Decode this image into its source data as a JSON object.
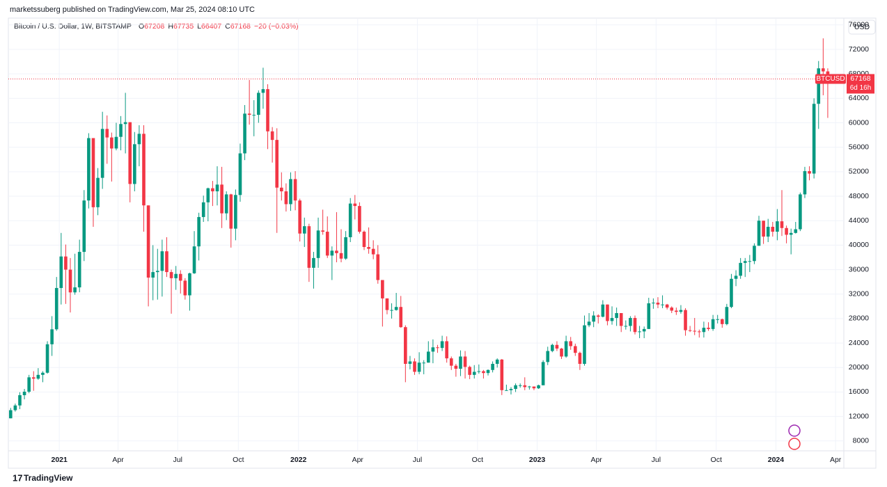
{
  "header": "marketssuberg published on TradingView.com, Mar 25, 2024 08:10 UTC",
  "footer": "TradingView",
  "currency_button": "USD",
  "chart_data": {
    "type": "candlestick",
    "legend": {
      "symbol": "Bitcoin / U.S. Dollar, 1W, BITSTAMP",
      "labels": [
        "O",
        "H",
        "L",
        "C"
      ],
      "change": "−20 (−0.03%)"
    },
    "up_color": "#089981",
    "down_color": "#f23645",
    "xlim": [
      -0.5,
      181.5
    ],
    "xticks": [
      {
        "value": 10.6,
        "label": "2021"
      },
      {
        "value": 23.4,
        "label": "Apr"
      },
      {
        "value": 36.4,
        "label": "Jul"
      },
      {
        "value": 49.6,
        "label": "Oct"
      },
      {
        "value": 62.7,
        "label": "2022"
      },
      {
        "value": 75.6,
        "label": "Apr"
      },
      {
        "value": 88.6,
        "label": "Jul"
      },
      {
        "value": 101.7,
        "label": "Oct"
      },
      {
        "value": 114.7,
        "label": "2023"
      },
      {
        "value": 127.6,
        "label": "Apr"
      },
      {
        "value": 140.6,
        "label": "Jul"
      },
      {
        "value": 153.7,
        "label": "Oct"
      },
      {
        "value": 166.7,
        "label": "2024"
      },
      {
        "value": 179.7,
        "label": "Apr"
      }
    ],
    "ylim": [
      6500,
      77000
    ],
    "yticks": [
      8000,
      12000,
      16000,
      20000,
      24000,
      28000,
      32000,
      36000,
      40000,
      44000,
      48000,
      52000,
      56000,
      60000,
      64000,
      68000,
      72000,
      76000
    ],
    "grid": true,
    "price_label": {
      "symbol": "BTCUSD",
      "value": 67168,
      "countdown": "6d 16h"
    },
    "candles": [
      [
        11700,
        13400,
        11700,
        13030
      ],
      [
        13030,
        14100,
        12800,
        13800
      ],
      [
        13800,
        15970,
        13200,
        15480
      ],
      [
        15480,
        16500,
        14800,
        16050
      ],
      [
        16050,
        18800,
        15800,
        18400
      ],
      [
        18400,
        19400,
        16200,
        18180
      ],
      [
        18180,
        19900,
        18000,
        18800
      ],
      [
        18800,
        19400,
        17600,
        19150
      ],
      [
        19150,
        24300,
        19000,
        23800
      ],
      [
        23800,
        28400,
        21900,
        26250
      ],
      [
        26250,
        34800,
        26000,
        33000
      ],
      [
        33000,
        42000,
        30300,
        38150
      ],
      [
        38150,
        40100,
        30400,
        36000
      ],
      [
        36000,
        37900,
        29000,
        32280
      ],
      [
        32280,
        38600,
        31900,
        33100
      ],
      [
        33100,
        40900,
        32300,
        38900
      ],
      [
        38900,
        49000,
        37400,
        47300
      ],
      [
        47300,
        58300,
        46000,
        57500
      ],
      [
        57500,
        57500,
        43000,
        46200
      ],
      [
        46200,
        52600,
        44900,
        51000
      ],
      [
        51000,
        61800,
        49200,
        59000
      ],
      [
        59000,
        61200,
        53300,
        57600
      ],
      [
        57600,
        58400,
        50400,
        55800
      ],
      [
        55800,
        60000,
        55500,
        57700
      ],
      [
        57700,
        61100,
        55500,
        59800
      ],
      [
        59800,
        64900,
        55000,
        60100
      ],
      [
        60100,
        60100,
        47000,
        50000
      ],
      [
        50000,
        58500,
        48800,
        56500
      ],
      [
        56500,
        59600,
        52900,
        58200
      ],
      [
        58200,
        59600,
        42200,
        46500
      ],
      [
        46500,
        46500,
        30000,
        34700
      ],
      [
        34700,
        40000,
        31000,
        35600
      ],
      [
        35600,
        39400,
        31100,
        35800
      ],
      [
        35800,
        40900,
        31600,
        39000
      ],
      [
        39000,
        41300,
        34800,
        35600
      ],
      [
        35600,
        36000,
        28800,
        34600
      ],
      [
        34600,
        36600,
        32700,
        35300
      ],
      [
        35300,
        35900,
        32100,
        34200
      ],
      [
        34200,
        34600,
        31100,
        31800
      ],
      [
        31800,
        35500,
        29300,
        35400
      ],
      [
        35400,
        42300,
        35300,
        39800
      ],
      [
        39800,
        45300,
        37500,
        44600
      ],
      [
        44600,
        48100,
        43800,
        47000
      ],
      [
        47000,
        49400,
        43900,
        49300
      ],
      [
        49300,
        50500,
        46400,
        48800
      ],
      [
        48800,
        52900,
        46500,
        49900
      ],
      [
        49900,
        52800,
        42800,
        45200
      ],
      [
        45200,
        48800,
        44100,
        48300
      ],
      [
        48300,
        48400,
        39600,
        42700
      ],
      [
        42700,
        49100,
        40800,
        48200
      ],
      [
        48200,
        56600,
        47100,
        55000
      ],
      [
        55000,
        62900,
        53900,
        61500
      ],
      [
        61500,
        67000,
        59700,
        61300
      ],
      [
        61300,
        63700,
        57800,
        61300
      ],
      [
        61300,
        65300,
        60000,
        64900
      ],
      [
        64900,
        69000,
        62300,
        65500
      ],
      [
        65500,
        66300,
        55700,
        58600
      ],
      [
        58600,
        59300,
        53500,
        57200
      ],
      [
        57200,
        59100,
        42000,
        49400
      ],
      [
        49400,
        51900,
        47300,
        48800
      ],
      [
        48800,
        50100,
        45500,
        46700
      ],
      [
        46700,
        51900,
        45600,
        50800
      ],
      [
        50800,
        52100,
        45700,
        47300
      ],
      [
        47300,
        47600,
        40600,
        41900
      ],
      [
        41900,
        44500,
        39700,
        43100
      ],
      [
        43100,
        43500,
        34000,
        36300
      ],
      [
        36300,
        38900,
        32900,
        37900
      ],
      [
        37900,
        44500,
        36300,
        42400
      ],
      [
        42400,
        45800,
        41700,
        42200
      ],
      [
        42200,
        44700,
        37900,
        38300
      ],
      [
        38300,
        39800,
        34300,
        39100
      ],
      [
        39100,
        45400,
        37200,
        38700
      ],
      [
        38700,
        42600,
        37200,
        37800
      ],
      [
        37800,
        42300,
        37600,
        41300
      ],
      [
        41300,
        47700,
        40500,
        46800
      ],
      [
        46800,
        48200,
        44200,
        46400
      ],
      [
        46400,
        47000,
        41900,
        42200
      ],
      [
        42200,
        42400,
        39200,
        39700
      ],
      [
        39700,
        42900,
        38600,
        39400
      ],
      [
        39400,
        40800,
        37700,
        38500
      ],
      [
        38500,
        40000,
        33700,
        34300
      ],
      [
        34300,
        34300,
        26700,
        31300
      ],
      [
        31300,
        31300,
        28700,
        29400
      ],
      [
        29400,
        30500,
        28000,
        29400
      ],
      [
        29400,
        32200,
        29300,
        29900
      ],
      [
        29900,
        31700,
        26500,
        26600
      ],
      [
        26600,
        26900,
        17600,
        20600
      ],
      [
        20600,
        21900,
        19700,
        21000
      ],
      [
        21000,
        21500,
        18800,
        19300
      ],
      [
        19300,
        22500,
        18900,
        20800
      ],
      [
        20800,
        21200,
        18900,
        20800
      ],
      [
        20800,
        24300,
        20800,
        22600
      ],
      [
        22600,
        24600,
        20700,
        23300
      ],
      [
        23300,
        23700,
        22400,
        23200
      ],
      [
        23200,
        25200,
        22700,
        24300
      ],
      [
        24300,
        25100,
        20800,
        21500
      ],
      [
        21500,
        21800,
        19600,
        20300
      ],
      [
        20300,
        20600,
        18500,
        19800
      ],
      [
        19800,
        22800,
        18600,
        21800
      ],
      [
        21800,
        22700,
        18200,
        20100
      ],
      [
        20100,
        20300,
        18100,
        18800
      ],
      [
        18800,
        20400,
        18200,
        19300
      ],
      [
        19300,
        20500,
        19000,
        19400
      ],
      [
        19400,
        19600,
        18200,
        19100
      ],
      [
        19100,
        19700,
        18700,
        19600
      ],
      [
        19600,
        21000,
        19200,
        20600
      ],
      [
        20600,
        21500,
        20000,
        21300
      ],
      [
        21300,
        21400,
        15500,
        16300
      ],
      [
        16300,
        17200,
        16200,
        16300
      ],
      [
        16300,
        16800,
        15600,
        16500
      ],
      [
        16500,
        17400,
        16000,
        17100
      ],
      [
        17100,
        17400,
        16700,
        17100
      ],
      [
        17100,
        18400,
        16300,
        16800
      ],
      [
        16800,
        17000,
        16400,
        16900
      ],
      [
        16900,
        16900,
        16300,
        16600
      ],
      [
        16600,
        17200,
        16500,
        17100
      ],
      [
        17100,
        21200,
        17100,
        20900
      ],
      [
        20900,
        23400,
        20400,
        22700
      ],
      [
        22700,
        23900,
        22500,
        23700
      ],
      [
        23700,
        24300,
        22700,
        23100
      ],
      [
        23100,
        23200,
        21400,
        21800
      ],
      [
        21800,
        25200,
        21600,
        24300
      ],
      [
        24300,
        25000,
        22900,
        23500
      ],
      [
        23500,
        23900,
        21900,
        22400
      ],
      [
        22400,
        22600,
        19600,
        20600
      ],
      [
        20600,
        28500,
        20300,
        26900
      ],
      [
        26900,
        28900,
        26600,
        27500
      ],
      [
        27500,
        29200,
        26600,
        28500
      ],
      [
        28500,
        28700,
        27200,
        28300
      ],
      [
        28300,
        31000,
        28200,
        30300
      ],
      [
        30300,
        30300,
        26900,
        27600
      ],
      [
        27600,
        30000,
        27000,
        28100
      ],
      [
        28100,
        29800,
        26800,
        28900
      ],
      [
        28900,
        28900,
        25800,
        26800
      ],
      [
        26800,
        27700,
        26200,
        26800
      ],
      [
        26800,
        28400,
        25900,
        28100
      ],
      [
        28100,
        28500,
        25400,
        25800
      ],
      [
        25800,
        26800,
        24800,
        25900
      ],
      [
        25900,
        26700,
        24800,
        26300
      ],
      [
        26300,
        31400,
        26300,
        30500
      ],
      [
        30500,
        31300,
        29600,
        30600
      ],
      [
        30600,
        31500,
        29700,
        30300
      ],
      [
        30300,
        31800,
        29700,
        30300
      ],
      [
        30300,
        30400,
        29500,
        29800
      ],
      [
        29800,
        30000,
        28900,
        29300
      ],
      [
        29300,
        29800,
        28600,
        29100
      ],
      [
        29100,
        30200,
        28800,
        29400
      ],
      [
        29400,
        29700,
        25200,
        26100
      ],
      [
        26100,
        26800,
        25800,
        26000
      ],
      [
        26000,
        28100,
        25300,
        25900
      ],
      [
        25900,
        26200,
        24900,
        25800
      ],
      [
        25800,
        27500,
        24900,
        26500
      ],
      [
        26500,
        27400,
        26000,
        26300
      ],
      [
        26300,
        28600,
        26000,
        27900
      ],
      [
        27900,
        28600,
        27200,
        27900
      ],
      [
        27900,
        28000,
        26500,
        27100
      ],
      [
        27100,
        30400,
        26900,
        29900
      ],
      [
        29900,
        35300,
        29700,
        34500
      ],
      [
        34500,
        35900,
        33300,
        35000
      ],
      [
        35000,
        37900,
        34500,
        37100
      ],
      [
        37100,
        37900,
        34800,
        37400
      ],
      [
        37400,
        38400,
        35600,
        37400
      ],
      [
        37400,
        40300,
        36900,
        39900
      ],
      [
        39900,
        44800,
        39900,
        44000
      ],
      [
        44000,
        44000,
        40200,
        41400
      ],
      [
        41400,
        44300,
        40500,
        43000
      ],
      [
        43000,
        43800,
        41400,
        42200
      ],
      [
        42200,
        45900,
        40800,
        43900
      ],
      [
        43900,
        49000,
        41500,
        42800
      ],
      [
        42800,
        43200,
        40300,
        41700
      ],
      [
        41700,
        42700,
        38500,
        42000
      ],
      [
        42000,
        43800,
        41900,
        42600
      ],
      [
        42600,
        48600,
        42300,
        48300
      ],
      [
        48300,
        52800,
        47700,
        52100
      ],
      [
        52100,
        52900,
        50600,
        51700
      ],
      [
        51700,
        64000,
        50900,
        63100
      ],
      [
        63100,
        70100,
        59000,
        68900
      ],
      [
        68900,
        73800,
        64500,
        68400
      ],
      [
        68400,
        68900,
        60800,
        67208
      ],
      [
        67208,
        67735,
        66407,
        67168
      ]
    ]
  }
}
